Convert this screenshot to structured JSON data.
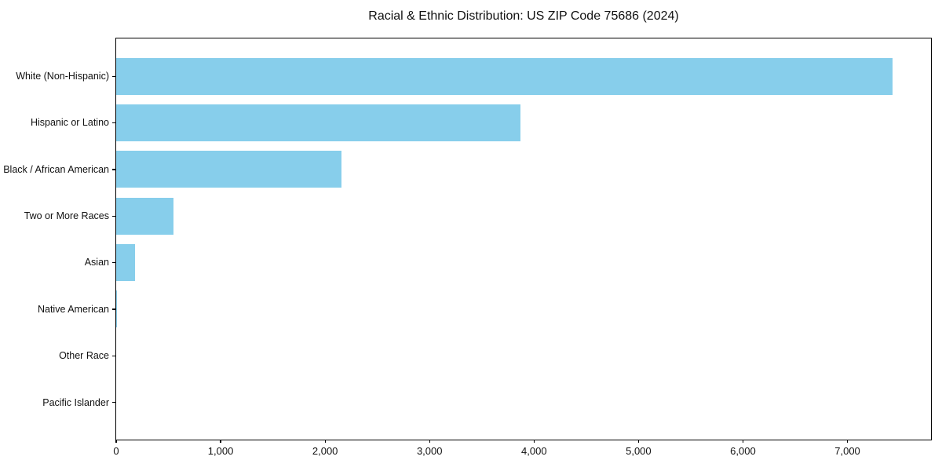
{
  "chart_data": {
    "type": "bar",
    "orientation": "horizontal",
    "title": "Racial & Ethnic Distribution: US ZIP Code 75686 (2024)",
    "categories": [
      "White (Non-Hispanic)",
      "Hispanic or Latino",
      "Black / African American",
      "Two or More Races",
      "Asian",
      "Native American",
      "Other Race",
      "Pacific Islander"
    ],
    "values": [
      7430,
      3870,
      2160,
      550,
      180,
      10,
      0,
      0
    ],
    "xlabel": "",
    "ylabel": "",
    "xlim": [
      0,
      7800
    ],
    "xticks": [
      0,
      1000,
      2000,
      3000,
      4000,
      5000,
      6000,
      7000
    ],
    "xtick_labels": [
      "0",
      "1,000",
      "2,000",
      "3,000",
      "4,000",
      "5,000",
      "6,000",
      "7,000"
    ],
    "bar_color": "#87CEEB",
    "axis_color": "#000000",
    "text_color": "#111111",
    "background": "#ffffff",
    "grid": false,
    "legend": null,
    "bar_height_frac": 0.8
  }
}
